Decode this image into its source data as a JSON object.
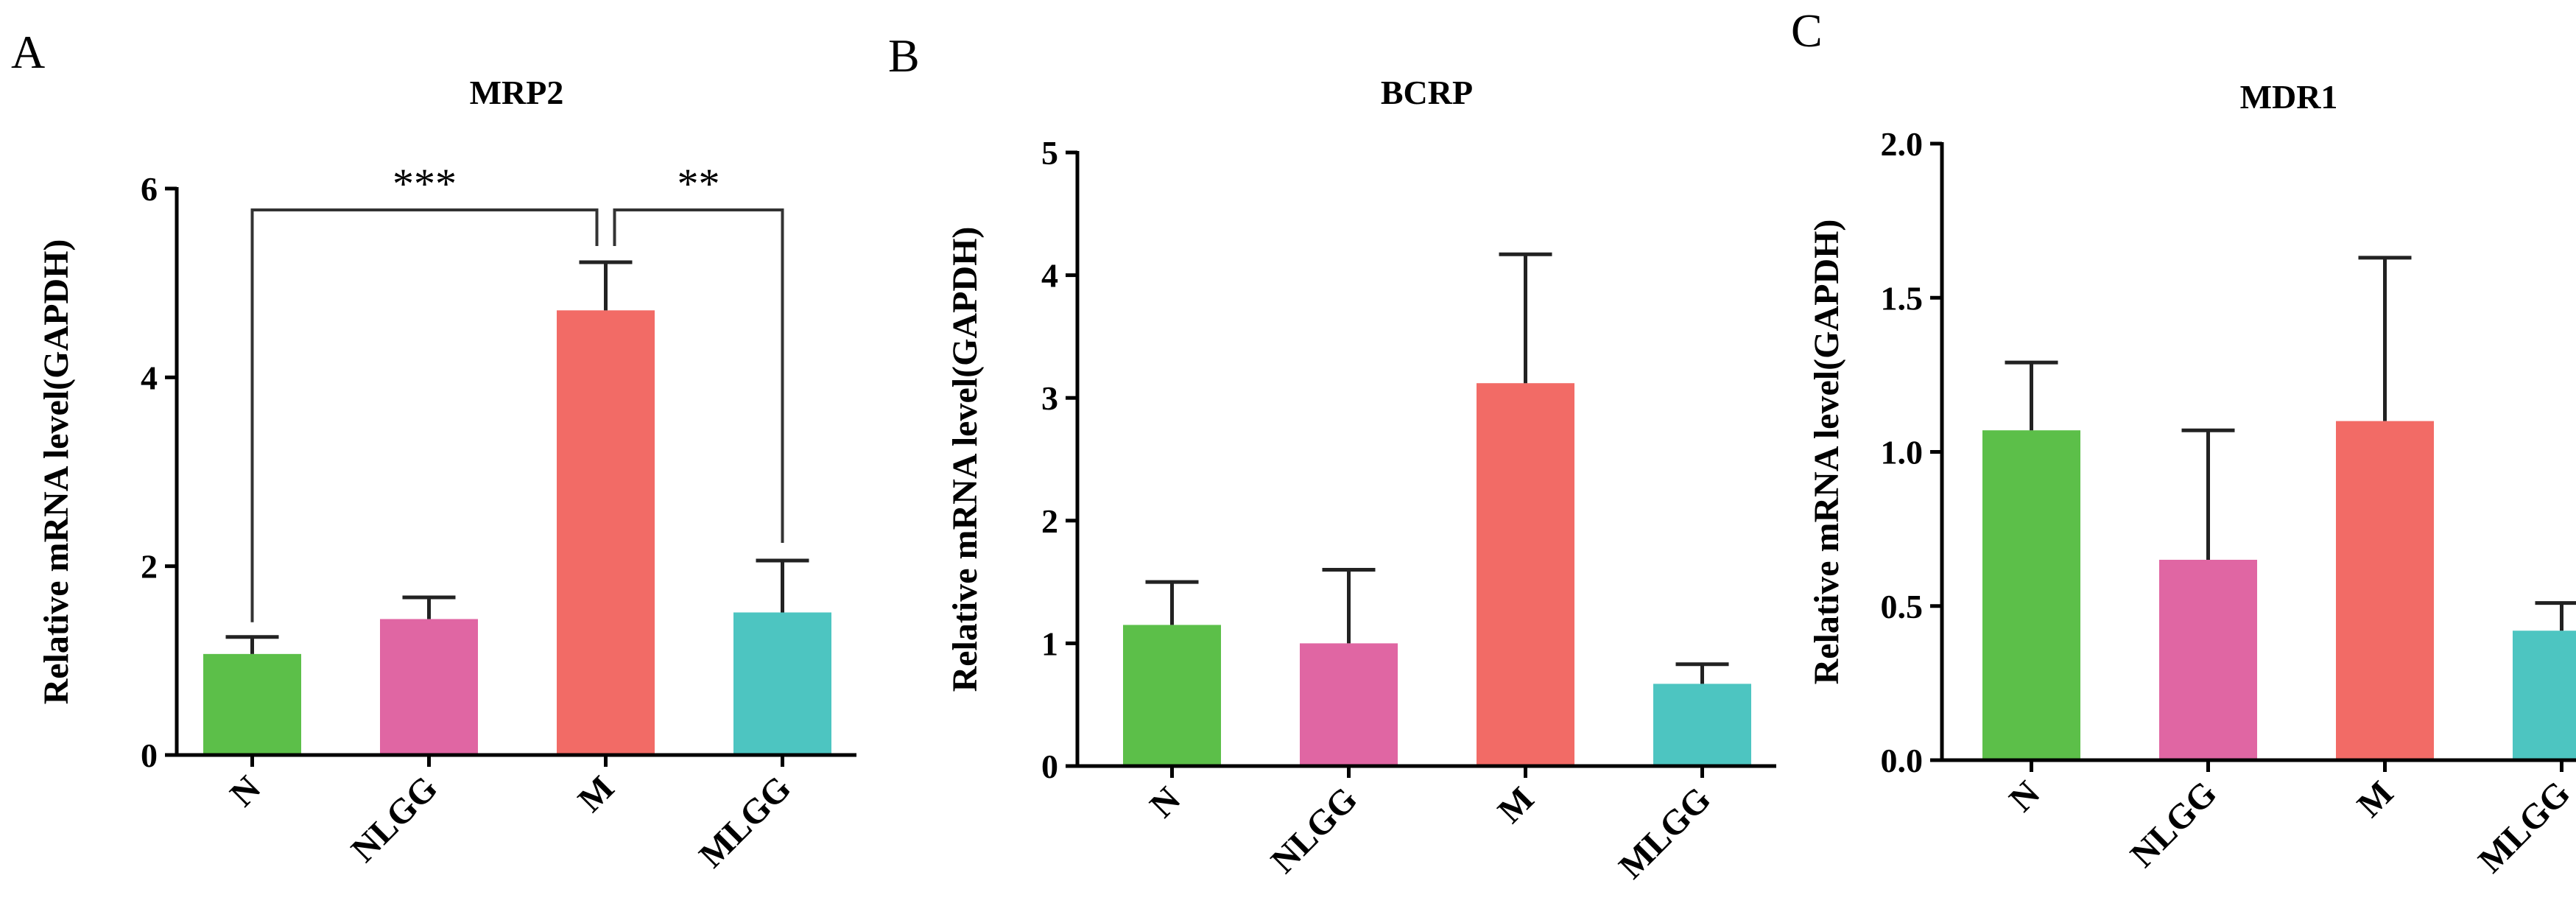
{
  "chart_data": [
    {
      "type": "bar",
      "panel_label": "A",
      "title": "MRP2",
      "xlabel": "",
      "ylabel": "Relative mRNA level(GAPDH)",
      "ylim": [
        0,
        6
      ],
      "yticks": [
        0,
        2,
        4,
        6
      ],
      "ytick_labels": [
        "0",
        "2",
        "4",
        "6"
      ],
      "categories": [
        "N",
        "NLGG",
        "M",
        "MLGG"
      ],
      "values": [
        1.07,
        1.44,
        4.71,
        1.51
      ],
      "errors": [
        0.18,
        0.23,
        0.51,
        0.55
      ],
      "colors": [
        "#5cbf49",
        "#e066a3",
        "#f26b66",
        "#4dc5c1"
      ],
      "annotations": [
        {
          "from": "N",
          "to": "M",
          "label": "***"
        },
        {
          "from": "M",
          "to": "MLGG",
          "label": "**"
        }
      ]
    },
    {
      "type": "bar",
      "panel_label": "B",
      "title": "BCRP",
      "xlabel": "",
      "ylabel": "Relative mRNA level(GAPDH)",
      "ylim": [
        0,
        5
      ],
      "yticks": [
        0,
        1,
        2,
        3,
        4,
        5
      ],
      "ytick_labels": [
        "0",
        "1",
        "2",
        "3",
        "4",
        "5"
      ],
      "categories": [
        "N",
        "NLGG",
        "M",
        "MLGG"
      ],
      "values": [
        1.15,
        1.0,
        3.12,
        0.67
      ],
      "errors": [
        0.35,
        0.6,
        1.05,
        0.16
      ],
      "colors": [
        "#5cbf49",
        "#e066a3",
        "#f26b66",
        "#4dc5c1"
      ],
      "annotations": []
    },
    {
      "type": "bar",
      "panel_label": "C",
      "title": "MDR1",
      "xlabel": "",
      "ylabel": "Relative mRNA level(GAPDH)",
      "ylim": [
        0,
        2.0
      ],
      "yticks": [
        0,
        0.5,
        1.0,
        1.5,
        2.0
      ],
      "ytick_labels": [
        "0.0",
        "0.5",
        "1.0",
        "1.5",
        "2.0"
      ],
      "categories": [
        "N",
        "NLGG",
        "M",
        "MLGG"
      ],
      "values": [
        1.07,
        0.65,
        1.1,
        0.42
      ],
      "errors": [
        0.22,
        0.42,
        0.53,
        0.09
      ],
      "colors": [
        "#5cbf49",
        "#e066a3",
        "#f26b66",
        "#4dc5c1"
      ],
      "annotations": []
    }
  ]
}
